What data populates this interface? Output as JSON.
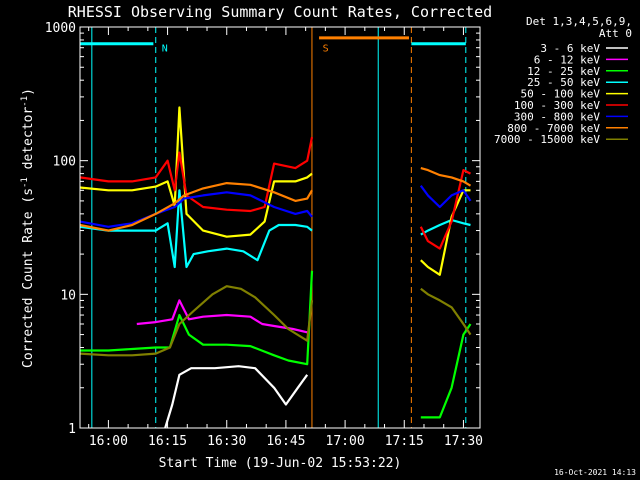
{
  "chart_data": {
    "type": "line",
    "title": "RHESSI Observing Summary Count Rates, Corrected",
    "xlabel": "Start Time (19-Jun-02 15:53:22)",
    "ylabel": "Corrected Count Rate (s",
    "ylabel_sup1": "-1",
    "ylabel_mid": " detector",
    "ylabel_sup2": "-1",
    "ylabel_end": ")",
    "yscale": "log",
    "ylim": [
      1,
      1000
    ],
    "xlim_minutes": [
      15.88,
      17.57
    ],
    "x_ticks": [
      {
        "label": "16:00",
        "t": 16.0
      },
      {
        "label": "16:15",
        "t": 16.25
      },
      {
        "label": "16:30",
        "t": 16.5
      },
      {
        "label": "16:45",
        "t": 16.75
      },
      {
        "label": "17:00",
        "t": 17.0
      },
      {
        "label": "17:15",
        "t": 17.25
      },
      {
        "label": "17:30",
        "t": 17.5
      }
    ],
    "y_ticks": [
      {
        "label": "1",
        "v": 1
      },
      {
        "label": "10",
        "v": 10
      },
      {
        "label": "100",
        "v": 100
      },
      {
        "label": "1000",
        "v": 1000
      }
    ],
    "legend_header": [
      "Det 1,3,4,5,6,9,",
      "Att 0"
    ],
    "legend_placement": "right",
    "date_stamp": "16-Oct-2021 14:13",
    "markers": [
      {
        "label": "N",
        "t": 16.2,
        "color": "#00ffff"
      },
      {
        "label": "S",
        "t": 16.88,
        "color": "#ff8000"
      }
    ],
    "vlines": [
      {
        "t": 15.93,
        "color": "#00ffff",
        "style": "solid"
      },
      {
        "t": 16.2,
        "color": "#00ffff",
        "style": "dashed"
      },
      {
        "t": 16.86,
        "color": "#ff8000",
        "style": "solid"
      },
      {
        "t": 17.14,
        "color": "#00ffff",
        "style": "solid"
      },
      {
        "t": 17.28,
        "color": "#ff8000",
        "style": "dashed"
      },
      {
        "t": 17.51,
        "color": "#00ffff",
        "style": "dashed"
      }
    ],
    "bars": [
      {
        "t0": 15.88,
        "t1": 16.19,
        "v": 750,
        "color": "#00ffff"
      },
      {
        "t0": 16.89,
        "t1": 17.27,
        "v": 830,
        "color": "#ff8000"
      },
      {
        "t0": 17.28,
        "t1": 17.51,
        "v": 750,
        "color": "#00ffff"
      }
    ],
    "series": [
      {
        "name": "3 - 6 keV",
        "color": "#ffffff",
        "segments": [
          [
            [
              16.24,
              1.0
            ],
            [
              16.27,
              1.5
            ],
            [
              16.3,
              2.5
            ],
            [
              16.35,
              2.8
            ],
            [
              16.45,
              2.8
            ],
            [
              16.55,
              2.9
            ],
            [
              16.62,
              2.8
            ],
            [
              16.7,
              2.0
            ],
            [
              16.75,
              1.5
            ],
            [
              16.8,
              2.0
            ],
            [
              16.84,
              2.5
            ]
          ]
        ]
      },
      {
        "name": "6 - 12 keV",
        "color": "#ff00ff",
        "segments": [
          [
            [
              16.12,
              6.0
            ],
            [
              16.2,
              6.2
            ],
            [
              16.27,
              6.5
            ],
            [
              16.3,
              9.0
            ],
            [
              16.34,
              6.5
            ],
            [
              16.4,
              6.8
            ],
            [
              16.5,
              7.0
            ],
            [
              16.6,
              6.8
            ],
            [
              16.65,
              6.0
            ],
            [
              16.7,
              5.8
            ],
            [
              16.78,
              5.5
            ],
            [
              16.84,
              5.2
            ]
          ]
        ]
      },
      {
        "name": "12 - 25 keV",
        "color": "#00ff00",
        "segments": [
          [
            [
              15.88,
              3.8
            ],
            [
              16.0,
              3.8
            ],
            [
              16.1,
              3.9
            ],
            [
              16.2,
              4.0
            ],
            [
              16.26,
              4.0
            ],
            [
              16.3,
              7.0
            ],
            [
              16.34,
              5.0
            ],
            [
              16.4,
              4.2
            ],
            [
              16.5,
              4.2
            ],
            [
              16.6,
              4.1
            ],
            [
              16.7,
              3.5
            ],
            [
              16.76,
              3.2
            ],
            [
              16.84,
              3.0
            ],
            [
              16.86,
              15.0
            ]
          ],
          [
            [
              17.32,
              1.2
            ],
            [
              17.4,
              1.2
            ],
            [
              17.45,
              2.0
            ],
            [
              17.5,
              5.0
            ],
            [
              17.53,
              6.0
            ]
          ]
        ]
      },
      {
        "name": "25 - 50 keV",
        "color": "#00ffff",
        "segments": [
          [
            [
              15.88,
              32
            ],
            [
              16.0,
              30
            ],
            [
              16.1,
              30
            ],
            [
              16.2,
              30
            ],
            [
              16.25,
              34
            ],
            [
              16.28,
              16
            ],
            [
              16.3,
              60
            ],
            [
              16.33,
              16
            ],
            [
              16.36,
              20
            ],
            [
              16.42,
              21
            ],
            [
              16.5,
              22
            ],
            [
              16.57,
              21
            ],
            [
              16.63,
              18
            ],
            [
              16.68,
              30
            ],
            [
              16.72,
              33
            ],
            [
              16.79,
              33
            ],
            [
              16.84,
              32
            ],
            [
              16.86,
              30
            ]
          ],
          [
            [
              17.32,
              28
            ],
            [
              17.35,
              30
            ],
            [
              17.4,
              33
            ],
            [
              17.45,
              36
            ],
            [
              17.5,
              34
            ],
            [
              17.53,
              33
            ]
          ]
        ]
      },
      {
        "name": "50 - 100 keV",
        "color": "#ffff00",
        "segments": [
          [
            [
              15.88,
              63
            ],
            [
              16.0,
              60
            ],
            [
              16.1,
              60
            ],
            [
              16.2,
              64
            ],
            [
              16.25,
              70
            ],
            [
              16.28,
              46
            ],
            [
              16.3,
              250
            ],
            [
              16.33,
              40
            ],
            [
              16.4,
              30
            ],
            [
              16.5,
              27
            ],
            [
              16.6,
              28
            ],
            [
              16.66,
              35
            ],
            [
              16.7,
              70
            ],
            [
              16.79,
              70
            ],
            [
              16.84,
              75
            ],
            [
              16.86,
              80
            ]
          ],
          [
            [
              17.32,
              18
            ],
            [
              17.35,
              16
            ],
            [
              17.4,
              14
            ],
            [
              17.45,
              38
            ],
            [
              17.5,
              60
            ],
            [
              17.53,
              60
            ]
          ]
        ]
      },
      {
        "name": "100 - 300 keV",
        "color": "#ff0000",
        "segments": [
          [
            [
              15.88,
              75
            ],
            [
              16.0,
              70
            ],
            [
              16.1,
              70
            ],
            [
              16.2,
              75
            ],
            [
              16.25,
              100
            ],
            [
              16.28,
              60
            ],
            [
              16.3,
              115
            ],
            [
              16.33,
              55
            ],
            [
              16.4,
              45
            ],
            [
              16.5,
              43
            ],
            [
              16.6,
              42
            ],
            [
              16.66,
              45
            ],
            [
              16.7,
              95
            ],
            [
              16.79,
              88
            ],
            [
              16.84,
              100
            ],
            [
              16.86,
              150
            ]
          ],
          [
            [
              17.32,
              32
            ],
            [
              17.35,
              25
            ],
            [
              17.4,
              22
            ],
            [
              17.45,
              35
            ],
            [
              17.5,
              85
            ],
            [
              17.53,
              80
            ]
          ]
        ]
      },
      {
        "name": "300 - 800 keV",
        "color": "#0000ff",
        "segments": [
          [
            [
              15.88,
              35
            ],
            [
              16.0,
              32
            ],
            [
              16.1,
              34
            ],
            [
              16.2,
              40
            ],
            [
              16.28,
              45
            ],
            [
              16.32,
              52
            ],
            [
              16.4,
              55
            ],
            [
              16.5,
              58
            ],
            [
              16.6,
              55
            ],
            [
              16.7,
              45
            ],
            [
              16.79,
              40
            ],
            [
              16.84,
              42
            ],
            [
              16.86,
              38
            ]
          ],
          [
            [
              17.32,
              65
            ],
            [
              17.35,
              55
            ],
            [
              17.4,
              45
            ],
            [
              17.45,
              55
            ],
            [
              17.5,
              60
            ],
            [
              17.53,
              50
            ]
          ]
        ]
      },
      {
        "name": "800 - 7000 keV",
        "color": "#ff8000",
        "segments": [
          [
            [
              15.88,
              33
            ],
            [
              16.0,
              30
            ],
            [
              16.1,
              33
            ],
            [
              16.2,
              40
            ],
            [
              16.28,
              48
            ],
            [
              16.32,
              55
            ],
            [
              16.4,
              62
            ],
            [
              16.5,
              68
            ],
            [
              16.6,
              66
            ],
            [
              16.7,
              58
            ],
            [
              16.79,
              50
            ],
            [
              16.84,
              52
            ],
            [
              16.86,
              60
            ]
          ],
          [
            [
              17.32,
              88
            ],
            [
              17.35,
              85
            ],
            [
              17.4,
              78
            ],
            [
              17.45,
              75
            ],
            [
              17.5,
              70
            ],
            [
              17.53,
              65
            ]
          ]
        ]
      },
      {
        "name": "7000 - 15000 keV",
        "color": "#808000",
        "segments": [
          [
            [
              15.88,
              3.6
            ],
            [
              16.0,
              3.5
            ],
            [
              16.1,
              3.5
            ],
            [
              16.2,
              3.6
            ],
            [
              16.26,
              4.0
            ],
            [
              16.3,
              6.0
            ],
            [
              16.36,
              7.5
            ],
            [
              16.44,
              10
            ],
            [
              16.5,
              11.5
            ],
            [
              16.56,
              11
            ],
            [
              16.62,
              9.5
            ],
            [
              16.7,
              7.0
            ],
            [
              16.76,
              5.5
            ],
            [
              16.84,
              4.5
            ],
            [
              16.86,
              9.0
            ]
          ],
          [
            [
              17.32,
              11
            ],
            [
              17.35,
              10
            ],
            [
              17.4,
              9.0
            ],
            [
              17.45,
              8.0
            ],
            [
              17.5,
              6.0
            ],
            [
              17.53,
              5.0
            ]
          ]
        ]
      }
    ]
  }
}
